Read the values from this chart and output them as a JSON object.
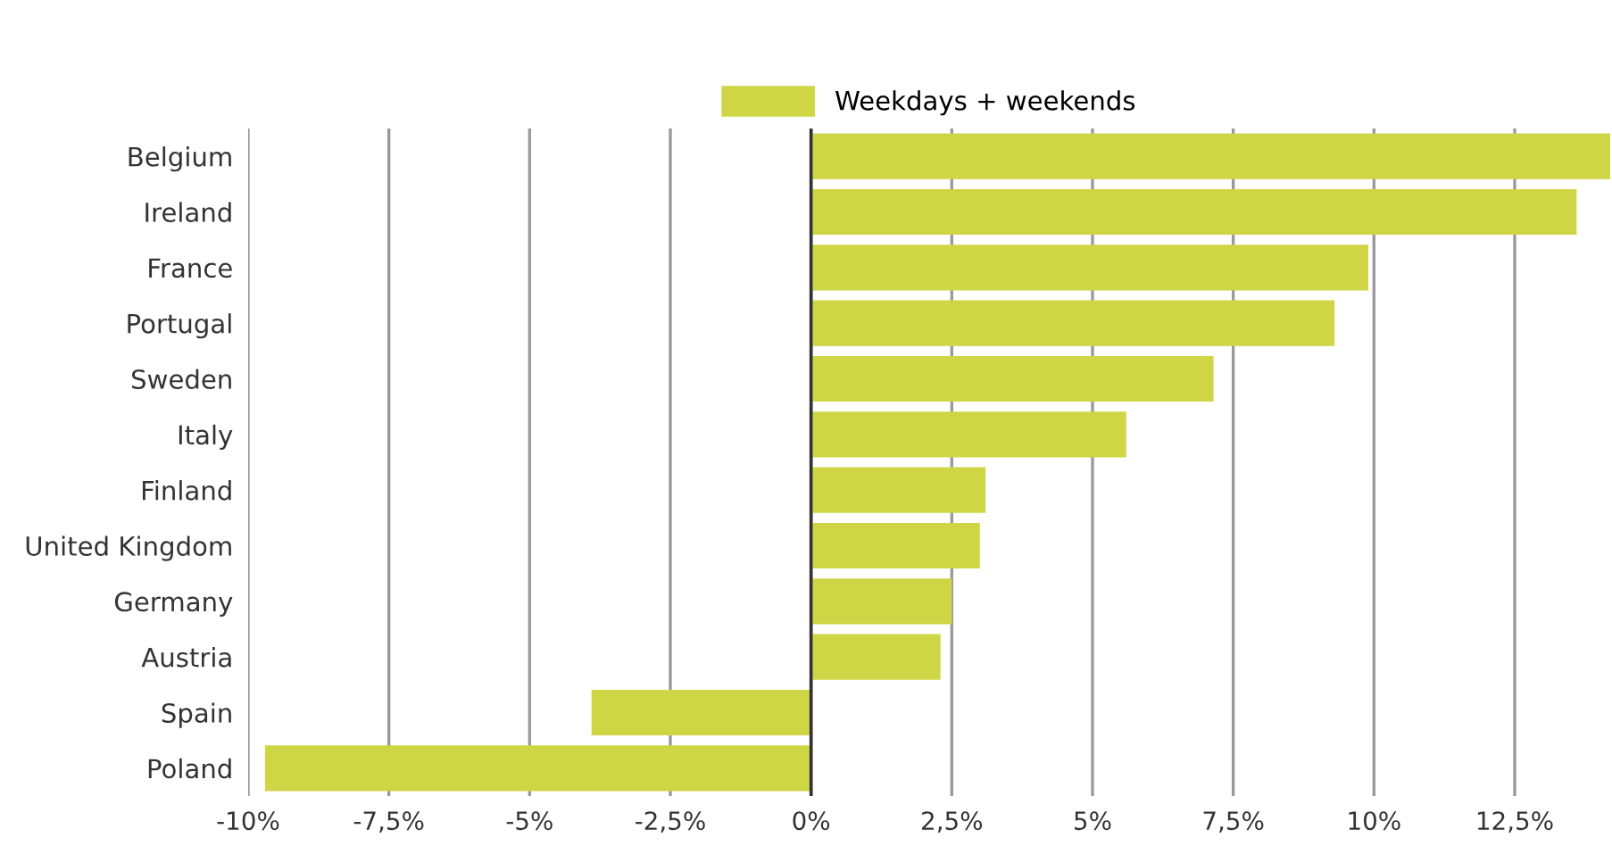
{
  "chart_data": {
    "type": "bar",
    "orientation": "horizontal",
    "categories": [
      "Belgium",
      "Ireland",
      "France",
      "Portugal",
      "Sweden",
      "Italy",
      "Finland",
      "United Kingdom",
      "Germany",
      "Austria",
      "Spain",
      "Poland"
    ],
    "series": [
      {
        "name": "Weekdays + weekends",
        "color": "#cfd646",
        "values": [
          14.2,
          13.6,
          9.9,
          9.3,
          7.15,
          5.6,
          3.1,
          3.0,
          2.5,
          2.3,
          -3.9,
          -9.7
        ]
      }
    ],
    "xlim": [
      -10,
      14.2
    ],
    "xticks": [
      {
        "value": -10,
        "label": "-10%"
      },
      {
        "value": -7.5,
        "label": "-7,5%"
      },
      {
        "value": -5,
        "label": "-5%"
      },
      {
        "value": -2.5,
        "label": "-2,5%"
      },
      {
        "value": 0,
        "label": "0%"
      },
      {
        "value": 2.5,
        "label": "2,5%"
      },
      {
        "value": 5,
        "label": "5%"
      },
      {
        "value": 7.5,
        "label": "7,5%"
      },
      {
        "value": 10,
        "label": "10%"
      },
      {
        "value": 12.5,
        "label": "12,5%"
      }
    ],
    "ref_lines": [
      {
        "axis": "x",
        "value": 0,
        "label": null,
        "color": "#333333"
      }
    ],
    "grid": "x",
    "legend": "top"
  }
}
